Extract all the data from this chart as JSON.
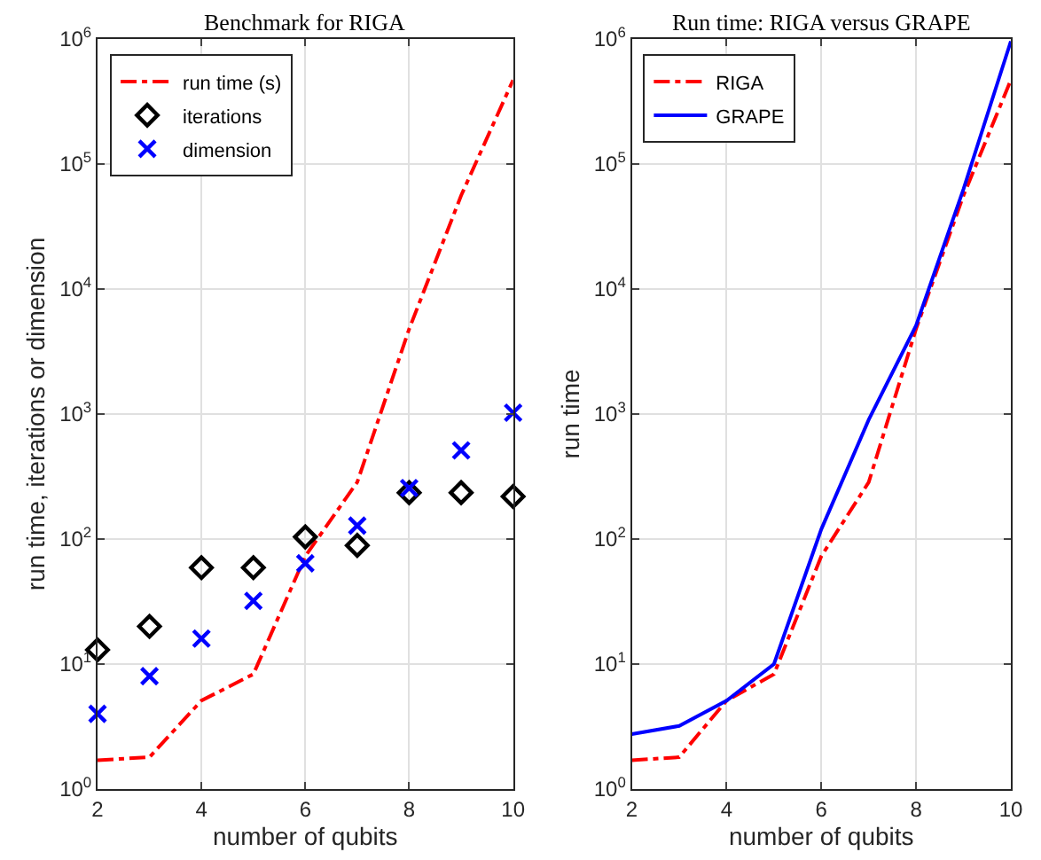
{
  "chart_data": [
    {
      "type": "line",
      "title": "Benchmark for RIGA",
      "xlabel": "number of qubits",
      "ylabel": "run time, iterations or dimension",
      "x": [
        2,
        3,
        4,
        5,
        6,
        7,
        8,
        9,
        10
      ],
      "series": [
        {
          "name": "run time (s)",
          "color": "#ff0000",
          "line_style": "dashed",
          "values": [
            1.7,
            1.8,
            5.1,
            8.3,
            73,
            285,
            4800,
            56000,
            470000
          ]
        },
        {
          "name": "iterations",
          "type": "scatter",
          "color": "#000000",
          "marker": "diamond",
          "values": [
            13,
            20,
            59,
            59,
            104,
            89,
            235,
            235,
            219
          ]
        },
        {
          "name": "dimension",
          "type": "scatter",
          "color": "#0000ff",
          "marker": "cross",
          "values": [
            4,
            8,
            16,
            32,
            64,
            128,
            256,
            512,
            1024
          ]
        }
      ],
      "log": "y",
      "xlim": [
        2,
        10
      ],
      "xticks": [
        2,
        4,
        6,
        8,
        10
      ],
      "ylim": [
        1,
        1000000
      ],
      "yticks": [
        {
          "value": 1,
          "label": "10$^{0}$"
        },
        {
          "value": 10,
          "label": "10$^{1}$"
        },
        {
          "value": 100,
          "label": "10$^{2}$"
        },
        {
          "value": 1000,
          "label": "10$^{3}$"
        },
        {
          "value": 10000,
          "label": "10$^{4}$"
        },
        {
          "value": 100000,
          "label": "10$^{5}$"
        },
        {
          "value": 1000000,
          "label": "10$^{6}$"
        }
      ],
      "grid": true,
      "legend": "top left"
    },
    {
      "type": "line",
      "title": "Run time: RIGA versus GRAPE",
      "xlabel": "number of qubits",
      "ylabel": "run time",
      "x": [
        2,
        3,
        4,
        5,
        6,
        7,
        8,
        9,
        10
      ],
      "series": [
        {
          "name": "RIGA",
          "color": "#ff0000",
          "line_style": "dashed",
          "values": [
            1.7,
            1.8,
            5.1,
            8.3,
            73,
            285,
            4800,
            56000,
            470000
          ]
        },
        {
          "name": "GRAPE",
          "color": "#0000ff",
          "line_style": "solid",
          "values": [
            2.75,
            3.2,
            5.1,
            10,
            120,
            900,
            5100,
            63000,
            960000
          ]
        }
      ],
      "log": "y",
      "xlim": [
        2,
        10
      ],
      "xticks": [
        2,
        4,
        6,
        8,
        10
      ],
      "ylim": [
        1,
        1000000
      ],
      "yticks": [
        {
          "value": 1,
          "label": "10$^{0}$"
        },
        {
          "value": 10,
          "label": "10$^{1}$"
        },
        {
          "value": 100,
          "label": "10$^{2}$"
        },
        {
          "value": 1000,
          "label": "10$^{3}$"
        },
        {
          "value": 10000,
          "label": "10$^{4}$"
        },
        {
          "value": 100000,
          "label": "10$^{5}$"
        },
        {
          "value": 1000000,
          "label": "10$^{6}$"
        }
      ],
      "grid": true,
      "legend": "top left"
    }
  ]
}
